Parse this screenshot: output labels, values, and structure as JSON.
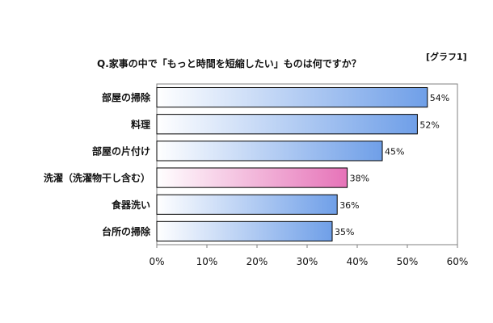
{
  "chart_data": {
    "type": "bar",
    "orientation": "horizontal",
    "title": "Q.家事の中で「もっと時間を短縮したい」ものは何ですか？",
    "tag": "[グラフ1]",
    "categories": [
      "部屋の掃除",
      "料理",
      "部屋の片付け",
      "洗濯（洗濯物干し含む）",
      "食器洗い",
      "台所の掃除"
    ],
    "values": [
      54,
      52,
      45,
      38,
      36,
      35
    ],
    "data_labels": [
      "54%",
      "52%",
      "45%",
      "38%",
      "36%",
      "35%"
    ],
    "xlim": [
      0,
      60
    ],
    "ticks": [
      0,
      10,
      20,
      30,
      40,
      50,
      60
    ],
    "tick_labels": [
      "0%",
      "10%",
      "20%",
      "30%",
      "40%",
      "50%",
      "60%"
    ],
    "grid": false,
    "colors": {
      "bar_start": "#ffffff",
      "bar_end": "#6f9fe8",
      "highlight_start": "#ffffff",
      "highlight_end": "#e673b8",
      "bar_stroke": "#000000",
      "plot_border": "#808080"
    },
    "highlight_index": 3
  }
}
